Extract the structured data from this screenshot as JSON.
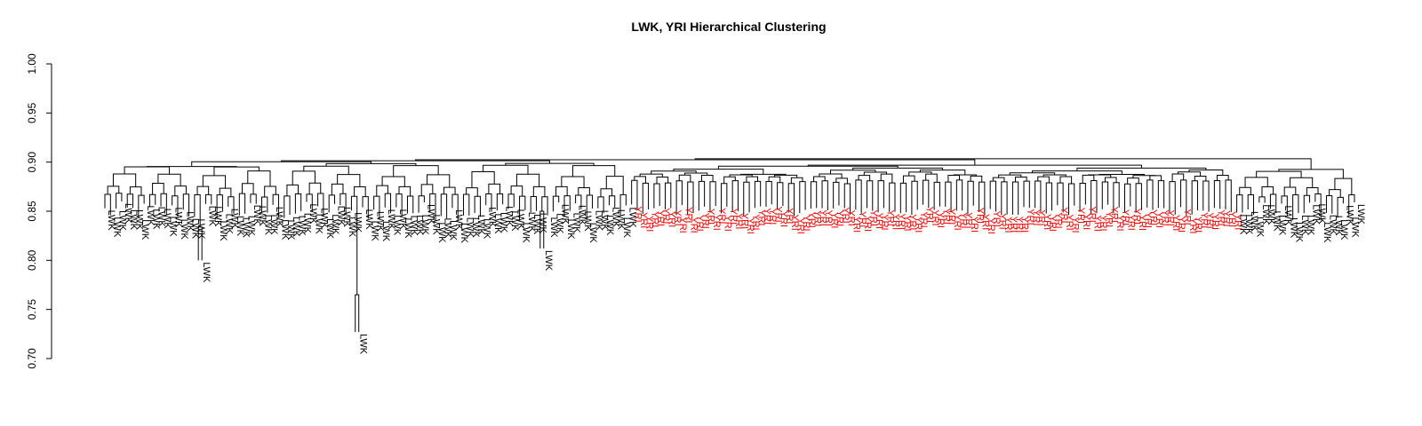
{
  "chart_data": {
    "type": "dendrogram",
    "title": "LWK, YRI Hierarchical Clustering",
    "xlabel": "",
    "ylabel": "",
    "ylim": [
      0.7,
      1.0
    ],
    "yticks": [
      "0.70",
      "0.75",
      "0.80",
      "0.85",
      "0.90",
      "0.95",
      "1.00"
    ],
    "grid": false,
    "legend": "none",
    "root_height": 0.895,
    "groups": [
      {
        "label": "LWK",
        "color": "#000000",
        "n_leaves": 94,
        "approx_merge_height_range": [
          0.86,
          0.897
        ]
      },
      {
        "label": "YRI",
        "color": "#ff0000",
        "n_leaves": 108,
        "approx_merge_height_range": [
          0.875,
          0.888
        ]
      },
      {
        "label": "LWK",
        "color": "#000000",
        "n_leaves": 22,
        "approx_merge_height_range": [
          0.86,
          0.892
        ]
      }
    ],
    "notable_leaves": [
      {
        "label": "LWK",
        "leaf_height": 0.8,
        "merge_height": 0.834
      },
      {
        "label": "LWK",
        "leaf_height": 0.727,
        "merge_height": 0.765
      },
      {
        "label": "LWK",
        "leaf_height": 0.812,
        "merge_height": 0.85
      }
    ]
  }
}
